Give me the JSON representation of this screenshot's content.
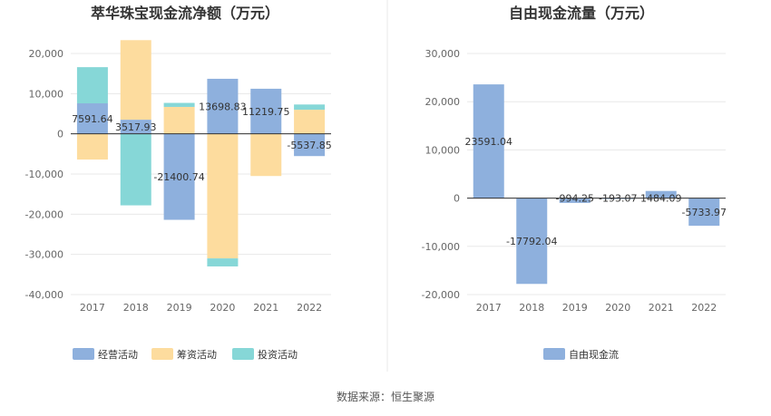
{
  "source": "数据来源：恒生聚源",
  "colors": {
    "operating": "#8eb0dd",
    "financing": "#fddc9e",
    "investing": "#86d7d7",
    "fcf": "#8eb0dd",
    "grid": "#e8e8e8",
    "axis": "#333333"
  },
  "chart_data": [
    {
      "type": "bar",
      "stacked": true,
      "title": "萃华珠宝现金流净额（万元）",
      "categories": [
        "2017",
        "2018",
        "2019",
        "2020",
        "2021",
        "2022"
      ],
      "y_ticks": [
        "20,000",
        "10,000",
        "0",
        "-10,000",
        "-20,000",
        "-30,000",
        "-40,000"
      ],
      "ylim": [
        -40000,
        20000
      ],
      "series": [
        {
          "name": "经营活动",
          "values": [
            7591.64,
            3517.93,
            -21400.74,
            13698.83,
            11219.75,
            -5537.85
          ]
        },
        {
          "name": "筹资活动",
          "values": [
            -6400,
            19800,
            6700,
            -31000,
            -10500,
            6000
          ]
        },
        {
          "name": "投资活动",
          "values": [
            9000,
            -17800,
            1000,
            -2000,
            0,
            1300
          ]
        }
      ],
      "data_labels": [
        "7591.64",
        "3517.93",
        "-21400.74",
        "13698.83",
        "11219.75",
        "-5537.85"
      ],
      "legend": [
        "经营活动",
        "筹资活动",
        "投资活动"
      ]
    },
    {
      "type": "bar",
      "title": "自由现金流量（万元）",
      "categories": [
        "2017",
        "2018",
        "2019",
        "2020",
        "2021",
        "2022"
      ],
      "y_ticks": [
        "30,000",
        "20,000",
        "10,000",
        "0",
        "-10,000",
        "-20,000"
      ],
      "ylim": [
        -20000,
        30000
      ],
      "series": [
        {
          "name": "自由现金流",
          "values": [
            23591.04,
            -17792.04,
            -994.25,
            -193.07,
            1484.09,
            -5733.97
          ]
        }
      ],
      "data_labels": [
        "23591.04",
        "-17792.04",
        "-994.25",
        "-193.07",
        "1484.09",
        "-5733.97"
      ],
      "legend": [
        "自由现金流"
      ]
    }
  ]
}
